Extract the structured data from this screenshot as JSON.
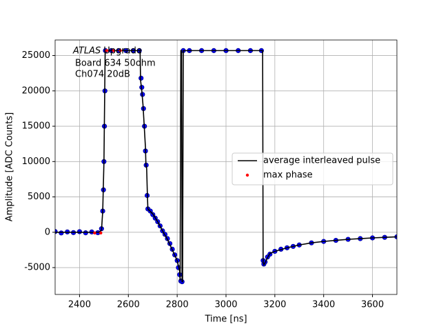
{
  "chart_data": {
    "type": "line",
    "xlabel": "Time [ns]",
    "ylabel": "Amplitude [ADC Counts]",
    "annotations": [
      "ATLAS",
      "Upgrade",
      "Board 634 50ohm",
      "Ch074 20dB"
    ],
    "xlim": [
      2300,
      3700
    ],
    "xticks": [
      2400,
      2600,
      2800,
      3000,
      3200,
      3400,
      3600
    ],
    "ylim": [
      -8800,
      27200
    ],
    "yticks": [
      -5000,
      0,
      5000,
      10000,
      15000,
      20000,
      25000
    ],
    "grid": true,
    "legend": "center right",
    "series": [
      {
        "color": "#0000ff",
        "mode": "markers",
        "x": [
          2300,
          2325,
          2350,
          2375,
          2400,
          2425,
          2450,
          2475,
          2490,
          2495,
          2498,
          2500,
          2502,
          2504,
          2506,
          2530,
          2560,
          2590,
          2620,
          2645,
          2652,
          2655,
          2658,
          2662,
          2666,
          2670,
          2673,
          2677,
          2680,
          2690,
          2700,
          2710,
          2720,
          2730,
          2740,
          2750,
          2760,
          2770,
          2780,
          2790,
          2800,
          2805,
          2810,
          2815,
          2820,
          2825,
          2850,
          2900,
          2950,
          3000,
          3050,
          3100,
          3145,
          3152,
          3155,
          3160,
          3170,
          3180,
          3200,
          3225,
          3250,
          3275,
          3300,
          3350,
          3400,
          3450,
          3500,
          3550,
          3600,
          3650,
          3700
        ],
        "values": [
          100,
          -100,
          50,
          -50,
          80,
          -80,
          40,
          -60,
          500,
          3000,
          6000,
          10000,
          15000,
          20000,
          25700,
          25700,
          25700,
          25700,
          25700,
          25700,
          21800,
          20500,
          19500,
          17500,
          15000,
          11500,
          9500,
          5200,
          3300,
          3000,
          2500,
          2000,
          1500,
          900,
          200,
          -300,
          -900,
          -1600,
          -2400,
          -3200,
          -4000,
          -5000,
          -6000,
          -6900,
          -7000,
          25700,
          25700,
          25700,
          25700,
          25700,
          25700,
          25700,
          25700,
          -4000,
          -4500,
          -4200,
          -3500,
          -3100,
          -2700,
          -2400,
          -2200,
          -2000,
          -1800,
          -1500,
          -1300,
          -1150,
          -1000,
          -900,
          -800,
          -720,
          -650
        ]
      },
      {
        "name": "average interleaved pulse",
        "color": "#000000",
        "mode": "line",
        "x": [
          2300,
          2400,
          2480,
          2490,
          2495,
          2500,
          2505,
          2550,
          2648,
          2650,
          2655,
          2660,
          2665,
          2670,
          2672,
          2675,
          2678,
          2680,
          2700,
          2720,
          2740,
          2760,
          2780,
          2800,
          2810,
          2812,
          2815,
          2818,
          2820,
          2822,
          2825,
          2900,
          3000,
          3100,
          3150,
          3152,
          3155,
          3160,
          3170,
          3180,
          3200,
          3250,
          3300,
          3350,
          3400,
          3450,
          3500,
          3550,
          3600,
          3650,
          3700
        ],
        "values": [
          0,
          0,
          0,
          300,
          3000,
          10000,
          25700,
          25700,
          25700,
          21500,
          20000,
          18000,
          15000,
          12000,
          9500,
          9000,
          5200,
          3300,
          2600,
          1500,
          200,
          -1000,
          -2500,
          -4000,
          -5500,
          -6800,
          25700,
          25700,
          -7000,
          -7000,
          25700,
          25700,
          25700,
          25700,
          25700,
          -4200,
          -4600,
          -4300,
          -3600,
          -3000,
          -2700,
          -2200,
          -1800,
          -1500,
          -1300,
          -1150,
          -1000,
          -900,
          -800,
          -720,
          -650
        ]
      },
      {
        "name": "max phase",
        "color": "#ff0000",
        "mode": "markers",
        "x": [
          2462,
          2487,
          2512,
          2540,
          2567
        ],
        "values": [
          -100,
          -100,
          25700,
          25700,
          25700
        ]
      }
    ]
  }
}
